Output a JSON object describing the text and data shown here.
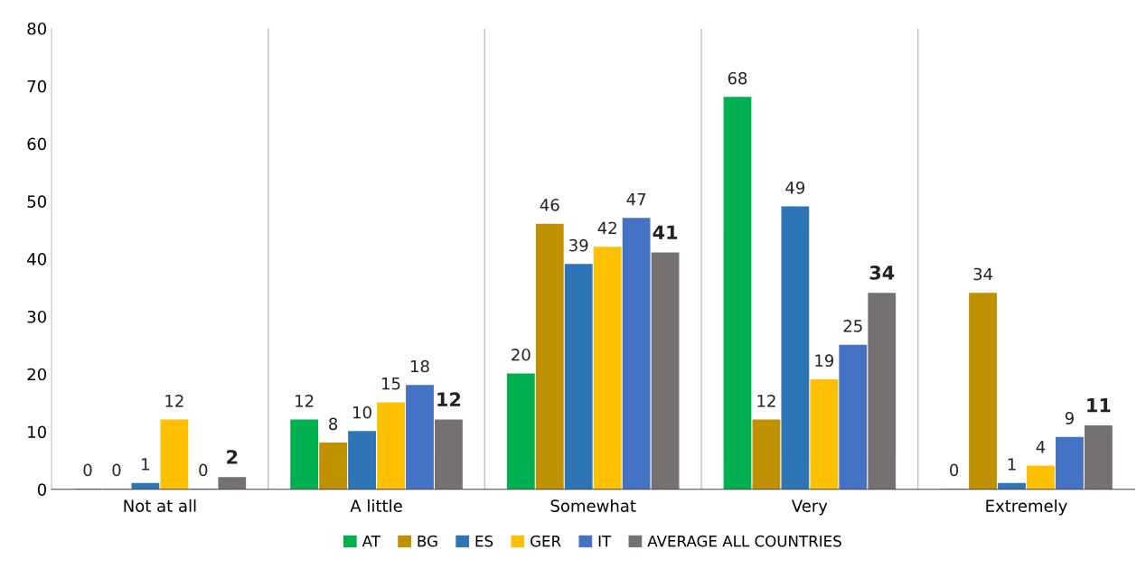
{
  "chart_data": {
    "type": "bar",
    "categories": [
      "Not at all",
      "A little",
      "Somewhat",
      "Very",
      "Extremely"
    ],
    "series": [
      {
        "name": "AT",
        "color": "#00b050",
        "values": [
          0,
          12,
          20,
          68,
          0
        ]
      },
      {
        "name": "BG",
        "color": "#bf9000",
        "values": [
          0,
          8,
          46,
          12,
          34
        ]
      },
      {
        "name": "ES",
        "color": "#2e75b6",
        "values": [
          1,
          10,
          39,
          49,
          1
        ]
      },
      {
        "name": "GER",
        "color": "#ffc000",
        "values": [
          12,
          15,
          42,
          19,
          4
        ]
      },
      {
        "name": "IT",
        "color": "#4472c4",
        "values": [
          0,
          18,
          47,
          25,
          9
        ]
      },
      {
        "name": "AVERAGE ALL COUNTRIES",
        "color": "#767171",
        "values": [
          2,
          12,
          41,
          34,
          11
        ]
      }
    ],
    "ylim": [
      0,
      80
    ],
    "yticks": [
      0,
      10,
      20,
      30,
      40,
      50,
      60,
      70,
      80
    ],
    "grid": "x",
    "legend": "bottom",
    "data_labels": true
  }
}
